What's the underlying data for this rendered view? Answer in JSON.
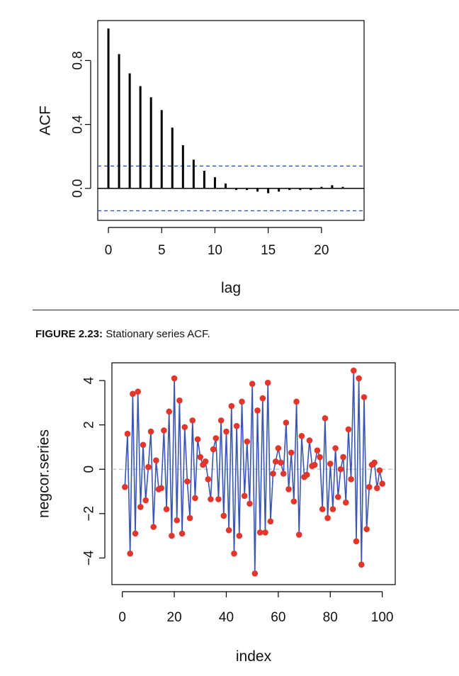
{
  "caption": {
    "label": "FIGURE 2.23:",
    "text": "Stationary series ACF."
  },
  "chart_data": [
    {
      "type": "bar",
      "subtype": "acf",
      "title": "",
      "xlabel": "lag",
      "ylabel": "ACF",
      "xlim": [
        -1,
        24
      ],
      "ylim": [
        -0.2,
        1.05
      ],
      "xticks": [
        0,
        5,
        10,
        15,
        20
      ],
      "yticks": [
        0.0,
        0.4,
        0.8
      ],
      "ytick_labels": [
        "0.0",
        "0.4",
        "0.8"
      ],
      "lags": [
        0,
        1,
        2,
        3,
        4,
        5,
        6,
        7,
        8,
        9,
        10,
        11,
        12,
        13,
        14,
        15,
        16,
        17,
        18,
        19,
        20,
        21,
        22,
        23
      ],
      "values": [
        1.0,
        0.84,
        0.72,
        0.64,
        0.57,
        0.49,
        0.38,
        0.27,
        0.18,
        0.11,
        0.07,
        0.03,
        -0.01,
        -0.01,
        -0.02,
        -0.03,
        -0.02,
        -0.01,
        -0.01,
        -0.01,
        0.01,
        0.02,
        0.01,
        0.0
      ],
      "confidence_bounds": [
        0.14,
        -0.14
      ],
      "zero_line": true,
      "colors": {
        "bars": "#000000",
        "bounds": "#3355cc"
      },
      "grid": false,
      "legend": "none"
    },
    {
      "type": "line",
      "markers": true,
      "title": "",
      "xlabel": "index",
      "ylabel": "negcor.series",
      "xlim": [
        -4,
        105
      ],
      "ylim": [
        -5.2,
        4.8
      ],
      "xticks": [
        0,
        20,
        40,
        60,
        80,
        100
      ],
      "yticks": [
        -4,
        -2,
        0,
        2,
        4
      ],
      "ytick_labels": [
        "−4",
        "−2",
        "0",
        "2",
        "4"
      ],
      "x": [
        1,
        2,
        3,
        4,
        5,
        6,
        7,
        8,
        9,
        10,
        11,
        12,
        13,
        14,
        15,
        16,
        17,
        18,
        19,
        20,
        21,
        22,
        23,
        24,
        25,
        26,
        27,
        28,
        29,
        30,
        31,
        32,
        33,
        34,
        35,
        36,
        37,
        38,
        39,
        40,
        41,
        42,
        43,
        44,
        45,
        46,
        47,
        48,
        49,
        50,
        51,
        52,
        53,
        54,
        55,
        56,
        57,
        58,
        59,
        60,
        61,
        62,
        63,
        64,
        65,
        66,
        67,
        68,
        69,
        70,
        71,
        72,
        73,
        74,
        75,
        76,
        77,
        78,
        79,
        80,
        81,
        82,
        83,
        84,
        85,
        86,
        87,
        88,
        89,
        90,
        91,
        92,
        93,
        94,
        95,
        96,
        97,
        98,
        99,
        100
      ],
      "y": [
        -0.8,
        1.6,
        -3.8,
        3.4,
        -2.9,
        3.5,
        -1.7,
        1.1,
        -1.4,
        0.1,
        1.7,
        -2.6,
        0.4,
        -0.9,
        -0.85,
        1.75,
        -1.8,
        2.6,
        -3.0,
        4.1,
        -2.3,
        3.1,
        -2.9,
        1.9,
        -0.55,
        -2.2,
        2.2,
        -1.3,
        1.35,
        0.55,
        0.2,
        0.35,
        -0.45,
        -1.35,
        0.9,
        1.4,
        -1.35,
        2.2,
        -2.1,
        1.7,
        -2.75,
        2.85,
        -3.8,
        1.95,
        -3.0,
        3.05,
        -1.2,
        1.25,
        -1.55,
        3.85,
        -4.7,
        2.65,
        -2.85,
        3.2,
        -2.85,
        3.9,
        -2.35,
        -0.2,
        0.35,
        0.95,
        0.3,
        -0.2,
        2.1,
        -0.9,
        0.75,
        -1.45,
        3.05,
        -2.95,
        1.5,
        -0.35,
        -0.25,
        1.3,
        0.15,
        0.2,
        0.85,
        0.55,
        -1.8,
        2.3,
        -2.2,
        0.25,
        -1.8,
        0.95,
        -1.25,
        0.0,
        0.55,
        -1.5,
        1.8,
        -0.45,
        4.45,
        -3.25,
        4.1,
        -4.3,
        3.25,
        -2.7,
        -0.8,
        0.2,
        0.3,
        -0.85,
        -0.05,
        -0.65
      ],
      "zero_line": true,
      "colors": {
        "line": "#3a55b4",
        "points": "#e0362c",
        "zero_line": "#c0c0c0"
      },
      "grid": false,
      "legend": "none"
    }
  ]
}
